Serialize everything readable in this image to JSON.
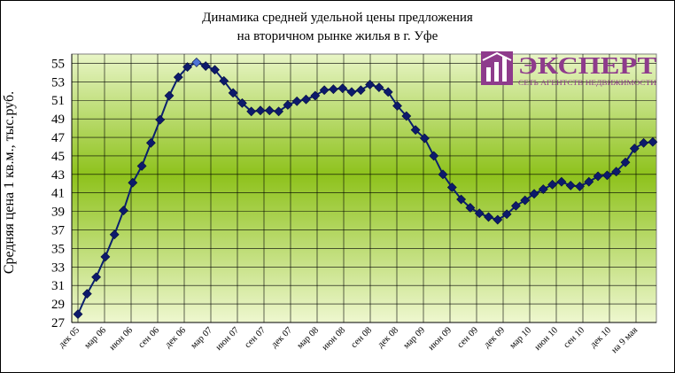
{
  "chart_data": {
    "type": "line",
    "title_lines": [
      "Динамика средней удельной цены предложения",
      "на вторичном рынке жилья в г. Уфе"
    ],
    "ylabel": "Средняя цена 1 кв.м., тыс.руб.",
    "xlabel": "",
    "ylim": [
      27,
      56
    ],
    "yticks": [
      27,
      29,
      31,
      33,
      35,
      37,
      39,
      41,
      43,
      45,
      47,
      49,
      51,
      53,
      55
    ],
    "x_tick_labels": [
      "дек 05",
      "мар 06",
      "июн 06",
      "сен 06",
      "дек 06",
      "мар 07",
      "июн 07",
      "сен 07",
      "дек 07",
      "мар 08",
      "июн 08",
      "сен 08",
      "дек 08",
      "мар 09",
      "июн 09",
      "сен 09",
      "дек 09",
      "мар 10",
      "июн 10",
      "сен 10",
      "дек 10",
      "на 9 мая"
    ],
    "grid": true,
    "line_color": "#0a1f6e",
    "marker_color": "#0d1a6b",
    "highlight_marker_color": "#4f74d6",
    "highlight_index": 13,
    "series": [
      {
        "values": [
          27.9,
          30.1,
          31.9,
          34.1,
          36.5,
          39.1,
          42.1,
          43.9,
          46.4,
          48.9,
          51.5,
          53.5,
          54.6,
          55.1,
          54.7,
          54.3,
          53.1,
          51.8,
          50.7,
          49.8,
          49.9,
          49.9,
          49.8,
          50.5,
          50.9,
          51.1,
          51.5,
          52.1,
          52.2,
          52.3,
          51.9,
          52.1,
          52.7,
          52.4,
          51.9,
          50.4,
          49.3,
          47.8,
          46.9,
          45.0,
          43.0,
          41.6,
          40.3,
          39.4,
          38.8,
          38.4,
          38.1,
          38.7,
          39.6,
          40.2,
          40.9,
          41.4,
          41.9,
          42.2,
          41.8,
          41.7,
          42.2,
          42.8,
          42.9,
          43.3,
          44.3,
          45.8,
          46.4,
          46.5
        ]
      }
    ]
  },
  "logo": {
    "name": "ЭКСПЕРТ",
    "tagline": "СЕТЬ АГЕНТСТВ НЕДВИЖИМОСТИ",
    "color": "#8e3b8c"
  }
}
